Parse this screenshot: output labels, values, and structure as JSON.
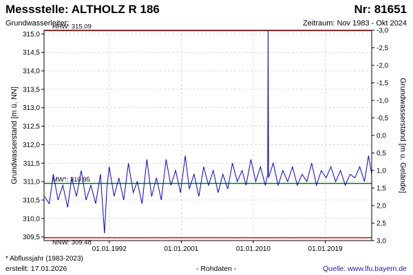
{
  "header": {
    "title": "Messstelle: ALTHOLZ R 186",
    "number": "Nr: 81651",
    "aquifer_label": "Grundwasserleiter:",
    "period": "Zeitraum: Nov 1983 - Okt 2024"
  },
  "footer": {
    "note": "* Abflussjahr (1983-2023)",
    "created": "erstellt:  17.01.2026",
    "raw": "- Rohdaten -",
    "source": "Quelle:  www.lfu.bayern.de"
  },
  "chart_data": {
    "type": "line",
    "ylabel": "Grundwasserstand [m ü. NN]",
    "ylabel_right": "Grundwasserstand [m u. Gelände]",
    "ylim": [
      309.4,
      315.1
    ],
    "y_ticks": [
      "309,5",
      "310,0",
      "310,5",
      "311,0",
      "311,5",
      "312,0",
      "312,5",
      "313,0",
      "313,5",
      "314,0",
      "314,5",
      "315,0"
    ],
    "y2_ticks": [
      "3,0",
      "2,5",
      "2,0",
      "1,5",
      "1,0",
      "0,5",
      "0,0",
      "-0,5",
      "-1,0",
      "-1,5",
      "-2,0",
      "-2,5",
      "-3,0"
    ],
    "x_range_years": [
      1983.85,
      2024.8
    ],
    "x_ticks": [
      "01.01.1992",
      "01.01.2001",
      "01.01.2010",
      "01.01.2019"
    ],
    "grid": true,
    "colors": {
      "series": "#0000cc",
      "extreme": "#ff0000",
      "mean": "#008000",
      "grid": "#bfbfbf"
    },
    "reference_lines": [
      {
        "label": "HHW: 315.09",
        "value": 315.09,
        "color": "#ff0000"
      },
      {
        "label": "MW*: 310.95",
        "value": 310.95,
        "color": "#008000"
      },
      {
        "label": "NNW: 309.48",
        "value": 309.48,
        "color": "#ff0000"
      }
    ],
    "series": [
      {
        "x": [
          1983.9,
          1984.5,
          1985.0,
          1985.6,
          1986.2,
          1986.8,
          1987.3,
          1987.9,
          1988.5,
          1989.1,
          1989.7,
          1990.3,
          1990.9,
          1991.4,
          1991.7,
          1992.0,
          1992.6,
          1993.2,
          1993.8,
          1994.4,
          1995.0,
          1995.5,
          1996.1,
          1996.7,
          1997.3,
          1997.9,
          1998.5,
          1999.1,
          1999.7,
          2000.3,
          2000.9,
          2001.5,
          2002.0,
          2002.6,
          2003.2,
          2003.8,
          2004.4,
          2005.0,
          2005.6,
          2006.2,
          2006.8,
          2007.4,
          2008.0,
          2008.6,
          2009.1,
          2009.7,
          2010.3,
          2010.9,
          2011.5,
          2011.8,
          2011.85,
          2011.9,
          2012.5,
          2013.1,
          2013.7,
          2014.3,
          2014.9,
          2015.5,
          2016.1,
          2016.7,
          2017.3,
          2017.9,
          2018.5,
          2019.1,
          2019.7,
          2020.3,
          2020.9,
          2021.5,
          2022.1,
          2022.7,
          2023.3,
          2023.9,
          2024.4,
          2024.8
        ],
        "y": [
          310.6,
          310.4,
          311.2,
          310.5,
          310.9,
          310.3,
          311.1,
          310.6,
          311.3,
          310.5,
          310.9,
          310.4,
          311.2,
          309.6,
          310.8,
          311.4,
          310.6,
          311.1,
          310.5,
          311.5,
          310.7,
          311.0,
          310.4,
          311.6,
          310.6,
          311.1,
          310.5,
          311.6,
          310.9,
          311.3,
          310.7,
          311.7,
          310.8,
          311.2,
          310.6,
          311.4,
          310.9,
          311.3,
          310.7,
          311.2,
          310.8,
          311.5,
          311.0,
          311.3,
          310.9,
          311.6,
          311.0,
          311.4,
          310.9,
          311.2,
          315.09,
          311.1,
          311.5,
          310.9,
          311.3,
          311.0,
          311.4,
          310.9,
          311.2,
          311.0,
          311.5,
          310.9,
          311.3,
          311.1,
          311.4,
          311.0,
          311.3,
          310.9,
          311.2,
          311.1,
          311.4,
          311.0,
          311.7,
          311.2
        ]
      }
    ]
  }
}
